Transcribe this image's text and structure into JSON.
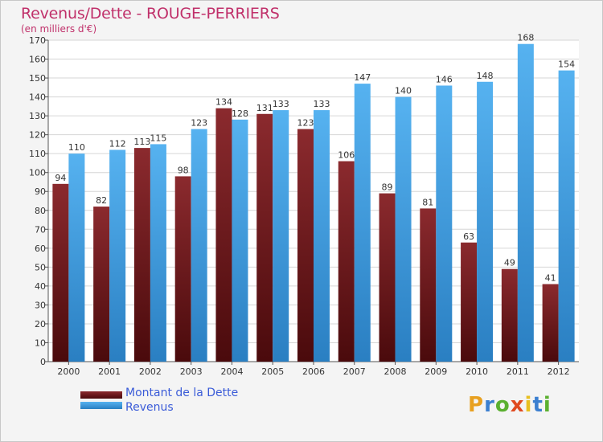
{
  "chart_data": {
    "type": "bar",
    "title": "Revenus/Dette - ROUGE-PERRIERS",
    "subtitle": "(en milliers d'€)",
    "categories": [
      "2000",
      "2001",
      "2002",
      "2003",
      "2004",
      "2005",
      "2006",
      "2007",
      "2008",
      "2009",
      "2010",
      "2011",
      "2012"
    ],
    "series": [
      {
        "name": "Montant de la Dette",
        "color": "#7a1c20",
        "values": [
          94,
          82,
          113,
          98,
          134,
          131,
          123,
          106,
          89,
          81,
          63,
          49,
          41
        ]
      },
      {
        "name": "Revenus",
        "color": "#3d9ee0",
        "values": [
          110,
          112,
          115,
          123,
          128,
          133,
          133,
          147,
          140,
          146,
          148,
          168,
          154
        ]
      }
    ],
    "ylim": [
      0,
      170
    ],
    "ytick_step": 10,
    "grid": true,
    "legend_position": "bottom-left"
  },
  "logo": {
    "letters": [
      "P",
      "r",
      "o",
      "x",
      "i",
      "t",
      "i"
    ],
    "colors": [
      "#e8a020",
      "#3b7fd0",
      "#5bb030",
      "#e04a20",
      "#e8c020",
      "#3b7fd0",
      "#5bb030"
    ]
  }
}
